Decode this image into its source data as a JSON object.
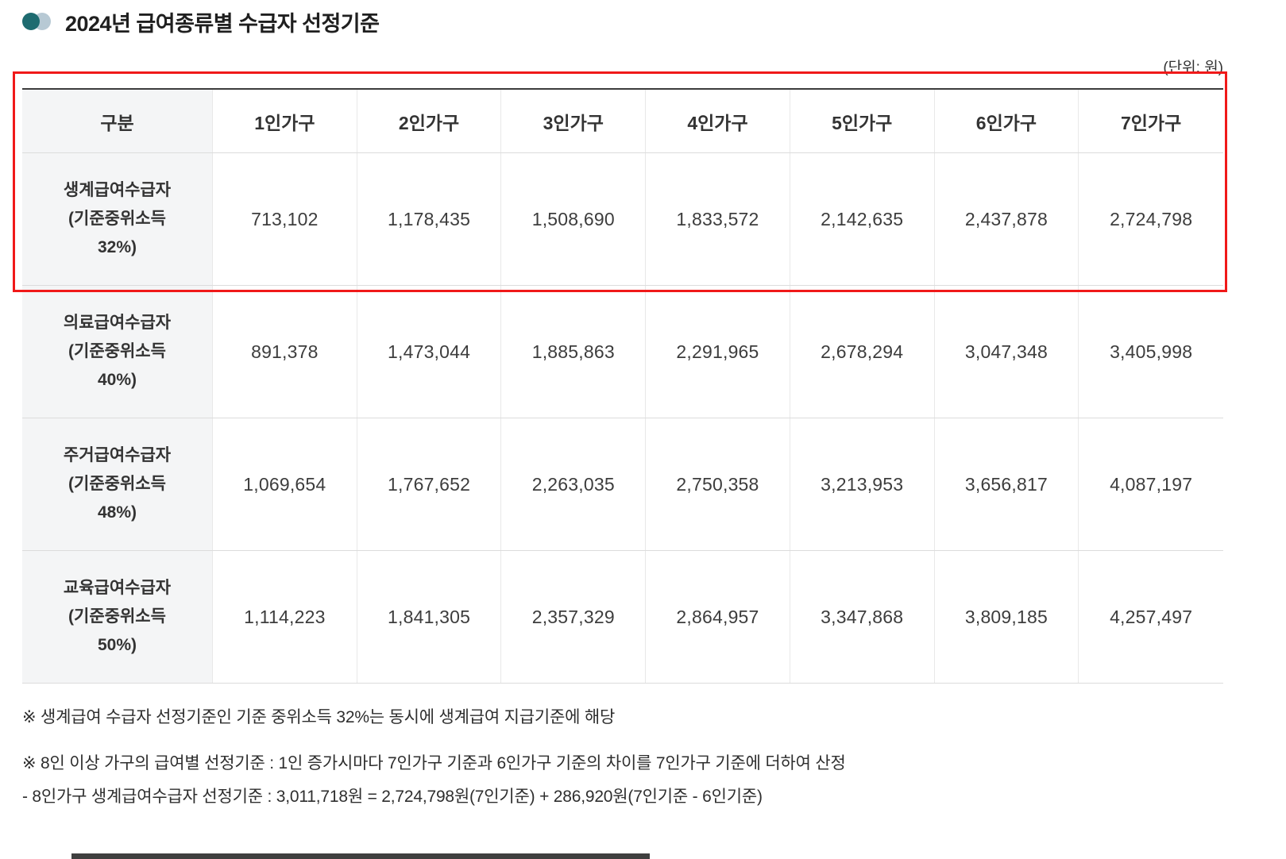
{
  "colors": {
    "highlight_border": "#f01919",
    "bullet_dark": "#1e6b70",
    "bullet_light": "#b7c9d4",
    "label_col_bg": "#f4f5f6",
    "table_top_border": "#3c3c3c"
  },
  "page": {
    "title": "2024년 급여종류별 수급자 선정기준",
    "unit_label": "(단위: 원)"
  },
  "table": {
    "headers": [
      "구분",
      "1인가구",
      "2인가구",
      "3인가구",
      "4인가구",
      "5인가구",
      "6인가구",
      "7인가구"
    ],
    "rows": [
      {
        "label_lines": [
          "생계급여수급자",
          "(기준중위소득",
          "32%)"
        ],
        "values": [
          "713,102",
          "1,178,435",
          "1,508,690",
          "1,833,572",
          "2,142,635",
          "2,437,878",
          "2,724,798"
        ]
      },
      {
        "label_lines": [
          "의료급여수급자",
          "(기준중위소득",
          "40%)"
        ],
        "values": [
          "891,378",
          "1,473,044",
          "1,885,863",
          "2,291,965",
          "2,678,294",
          "3,047,348",
          "3,405,998"
        ]
      },
      {
        "label_lines": [
          "주거급여수급자",
          "(기준중위소득",
          "48%)"
        ],
        "values": [
          "1,069,654",
          "1,767,652",
          "2,263,035",
          "2,750,358",
          "3,213,953",
          "3,656,817",
          "4,087,197"
        ]
      },
      {
        "label_lines": [
          "교육급여수급자",
          "(기준중위소득",
          "50%)"
        ],
        "values": [
          "1,114,223",
          "1,841,305",
          "2,357,329",
          "2,864,957",
          "3,347,868",
          "3,809,185",
          "4,257,497"
        ]
      }
    ]
  },
  "footnotes": [
    "※ 생계급여 수급자 선정기준인 기준 중위소득 32%는 동시에 생계급여 지급기준에 해당",
    "※ 8인 이상 가구의 급여별 선정기준 : 1인 증가시마다 7인가구 기준과 6인가구 기준의 차이를 7인가구 기준에 더하여 산정",
    "- 8인가구 생계급여수급자 선정기준 : 3,011,718원 = 2,724,798원(7인기준) + 286,920원(7인기준 - 6인기준)"
  ]
}
